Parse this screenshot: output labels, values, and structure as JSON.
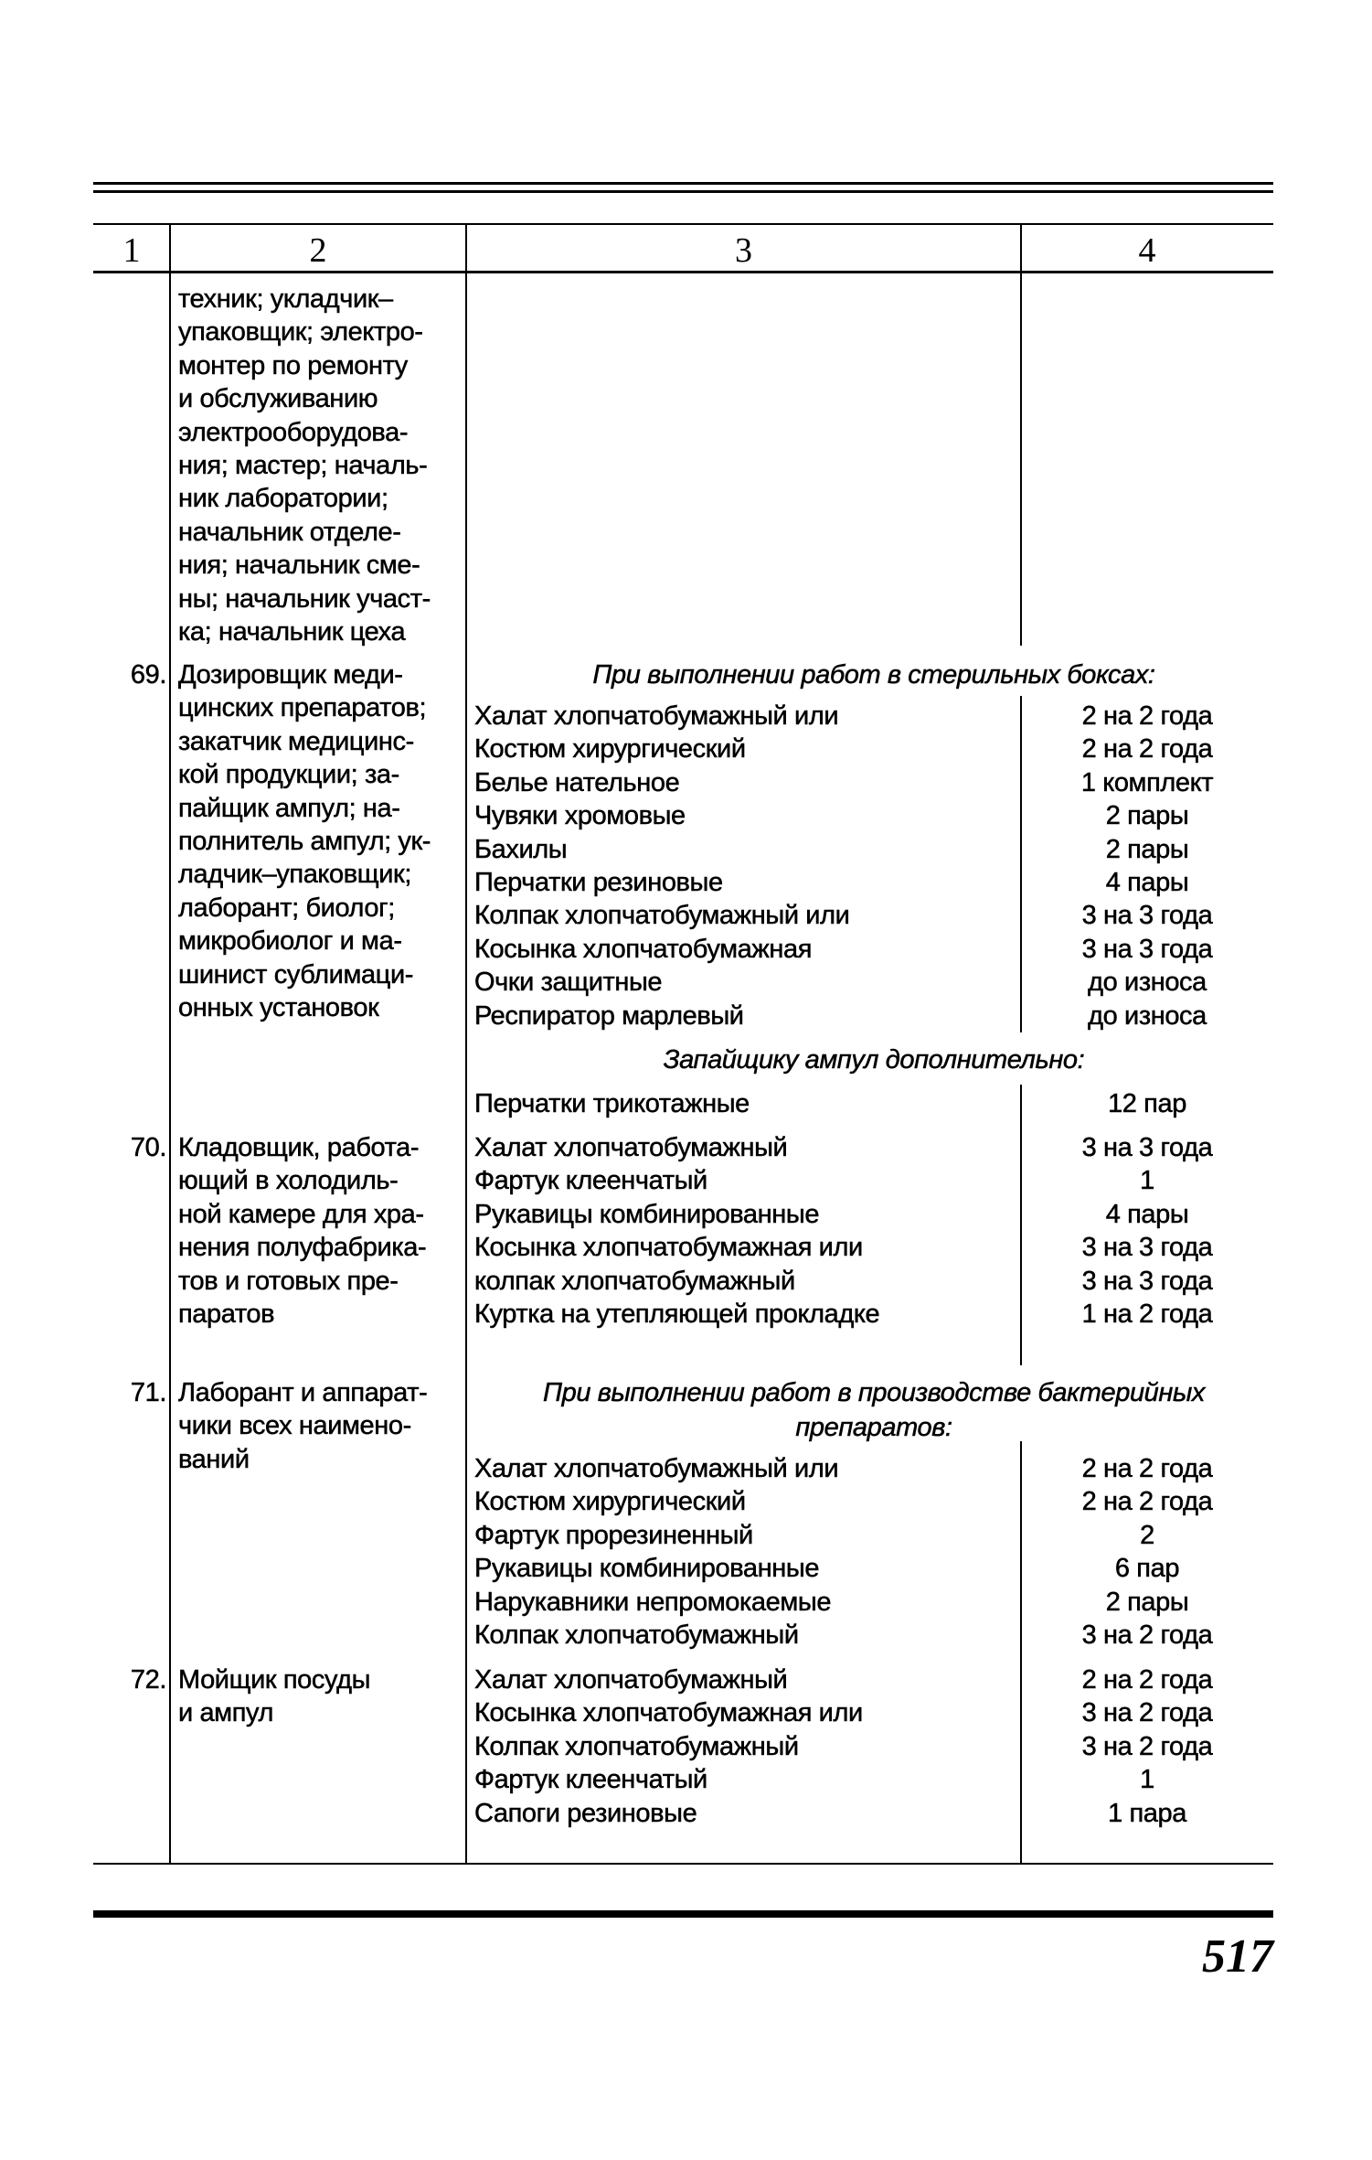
{
  "table": {
    "column_headers": [
      "1",
      "2",
      "3",
      "4"
    ],
    "continuation": {
      "description_lines": [
        "техник; укладчик–",
        "упаковщик; электро-",
        "монтер по ремонту",
        "и обслуживанию",
        "электрооборудова-",
        "ния; мастер; началь-",
        "ник лаборатории;",
        "начальник отделе-",
        "ния; начальник сме-",
        "ны; начальник участ-",
        "ка; начальник цеха"
      ]
    },
    "rows": [
      {
        "num": "69.",
        "description_lines": [
          "Дозировщик меди-",
          "цинских препаратов;",
          "закатчик медицинс-",
          "кой продукции; за-",
          "пайщик ампул; на-",
          "полнитель ампул; ук-",
          "ладчик–упаковщик;",
          "лаборант; биолог;",
          "микробиолог и ма-",
          "шинист сублимаци-",
          "онных установок"
        ],
        "groups": [
          {
            "heading": [
              "При выполнении работ в стерильных боксах:"
            ],
            "items": [
              {
                "name": "Халат хлопчатобумажный или",
                "norm": "2 на 2 года"
              },
              {
                "name": "Костюм хирургический",
                "norm": "2 на 2 года"
              },
              {
                "name": "Белье нательное",
                "norm": "1 комплект"
              },
              {
                "name": "Чувяки хромовые",
                "norm": "2 пары"
              },
              {
                "name": "Бахилы",
                "norm": "2 пары"
              },
              {
                "name": "Перчатки резиновые",
                "norm": "4 пары"
              },
              {
                "name": "Колпак хлопчатобумажный или",
                "norm": "3 на 3 года"
              },
              {
                "name": "Косынка хлопчатобумажная",
                "norm": "3 на 3 года"
              },
              {
                "name": "Очки защитные",
                "norm": "до износа"
              },
              {
                "name": "Респиратор марлевый",
                "norm": "до износа"
              }
            ]
          },
          {
            "heading": [
              "Запайщику ампул дополнительно:"
            ],
            "items": [
              {
                "name": "Перчатки трикотажные",
                "norm": "12 пар"
              }
            ]
          }
        ]
      },
      {
        "num": "70.",
        "description_lines": [
          "Кладовщик, работа-",
          "ющий в холодиль-",
          "ной камере для хра-",
          "нения полуфабрика-",
          "тов и готовых пре-",
          "паратов"
        ],
        "groups": [
          {
            "heading": [],
            "items": [
              {
                "name": "Халат хлопчатобумажный",
                "norm": "3 на 3 года"
              },
              {
                "name": "Фартук клеенчатый",
                "norm": "1"
              },
              {
                "name": "Рукавицы комбинированные",
                "norm": "4 пары"
              },
              {
                "name": "Косынка хлопчатобумажная или",
                "norm": "3 на 3 года"
              },
              {
                "name": "колпак хлопчатобумажный",
                "norm": "3 на 3 года"
              },
              {
                "name": "Куртка на утепляющей прокладке",
                "norm": "1 на 2 года"
              }
            ]
          }
        ]
      },
      {
        "num": "71.",
        "description_lines": [
          "Лаборант и аппарат-",
          "чики всех наимено-",
          "ваний"
        ],
        "groups": [
          {
            "heading": [
              "При выполнении работ в производстве бактерийных",
              "препаратов:"
            ],
            "items": [
              {
                "name": "Халат хлопчатобумажный или",
                "norm": "2 на 2 года"
              },
              {
                "name": "Костюм хирургический",
                "norm": "2 на 2 года"
              },
              {
                "name": "Фартук прорезиненный",
                "norm": "2"
              },
              {
                "name": "Рукавицы комбинированные",
                "norm": "6 пар"
              },
              {
                "name": "Нарукавники непромокаемые",
                "norm": "2 пары"
              },
              {
                "name": "Колпак хлопчатобумажный",
                "norm": "3 на 2 года"
              }
            ]
          }
        ]
      },
      {
        "num": "72.",
        "description_lines": [
          "Мойщик посуды",
          "и ампул"
        ],
        "groups": [
          {
            "heading": [],
            "items": [
              {
                "name": "Халат хлопчатобумажный",
                "norm": "2 на 2 года"
              },
              {
                "name": "Косынка хлопчатобумажная или",
                "norm": "3 на 2 года"
              },
              {
                "name": "Колпак хлопчатобумажный",
                "norm": "3 на 2 года"
              },
              {
                "name": "Фартук клеенчатый",
                "norm": "1"
              },
              {
                "name": "Сапоги резиновые",
                "norm": "1 пара"
              }
            ]
          }
        ]
      }
    ]
  },
  "page_number": "517"
}
